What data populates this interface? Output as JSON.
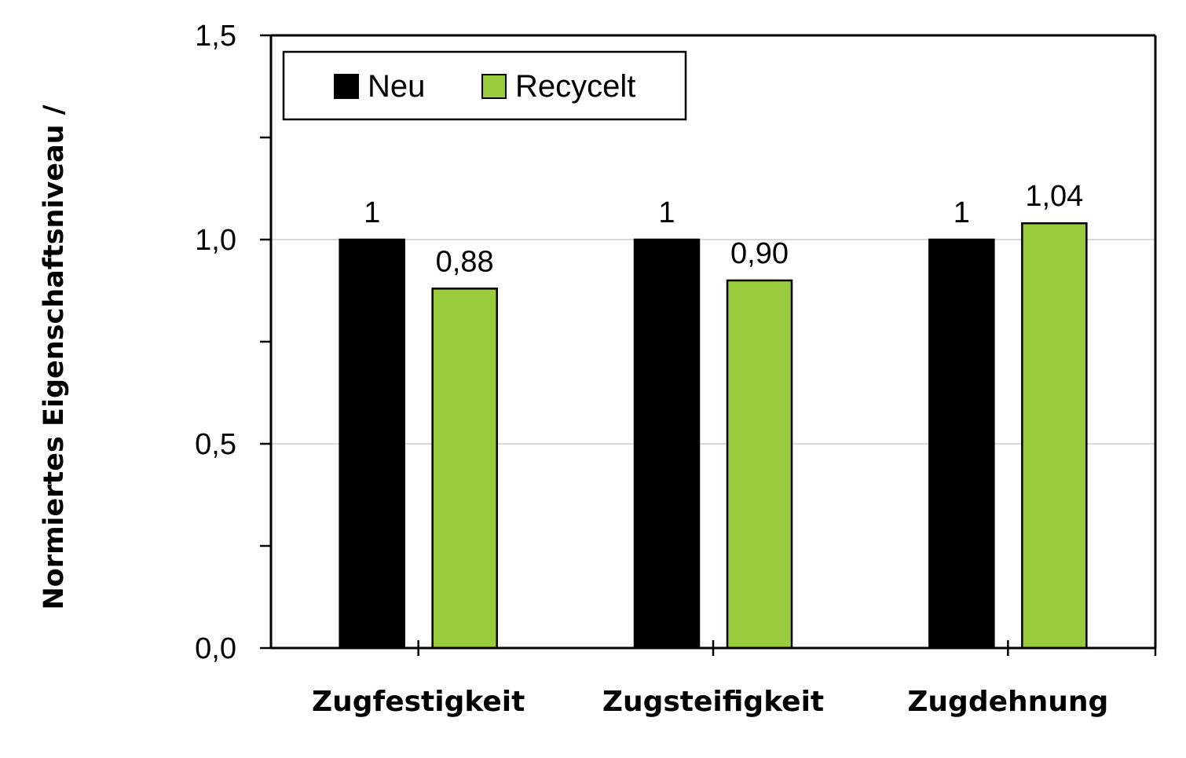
{
  "chart_data": {
    "type": "bar",
    "title": "",
    "xlabel": "",
    "ylabel": "Normiertes Eigenschaftsniveau /",
    "ylim": [
      0,
      1.5
    ],
    "yticks": [
      0,
      0.5,
      1.0,
      1.5
    ],
    "ytick_labels": [
      "0,0",
      "0,5",
      "1,0",
      "1,5"
    ],
    "categories": [
      "Zugfestigkeit",
      "Zugsteifigkeit",
      "Zugdehnung"
    ],
    "series": [
      {
        "name": "Neu",
        "color": "#000000",
        "values": [
          1,
          1,
          1
        ],
        "labels": [
          "1",
          "1",
          "1"
        ]
      },
      {
        "name": "Recycelt",
        "color": "#9acb3c",
        "values": [
          0.88,
          0.9,
          1.04
        ],
        "labels": [
          "0,88",
          "0,90",
          "1,04"
        ]
      }
    ],
    "grid": "horizontal",
    "legend_position": "top-left"
  }
}
